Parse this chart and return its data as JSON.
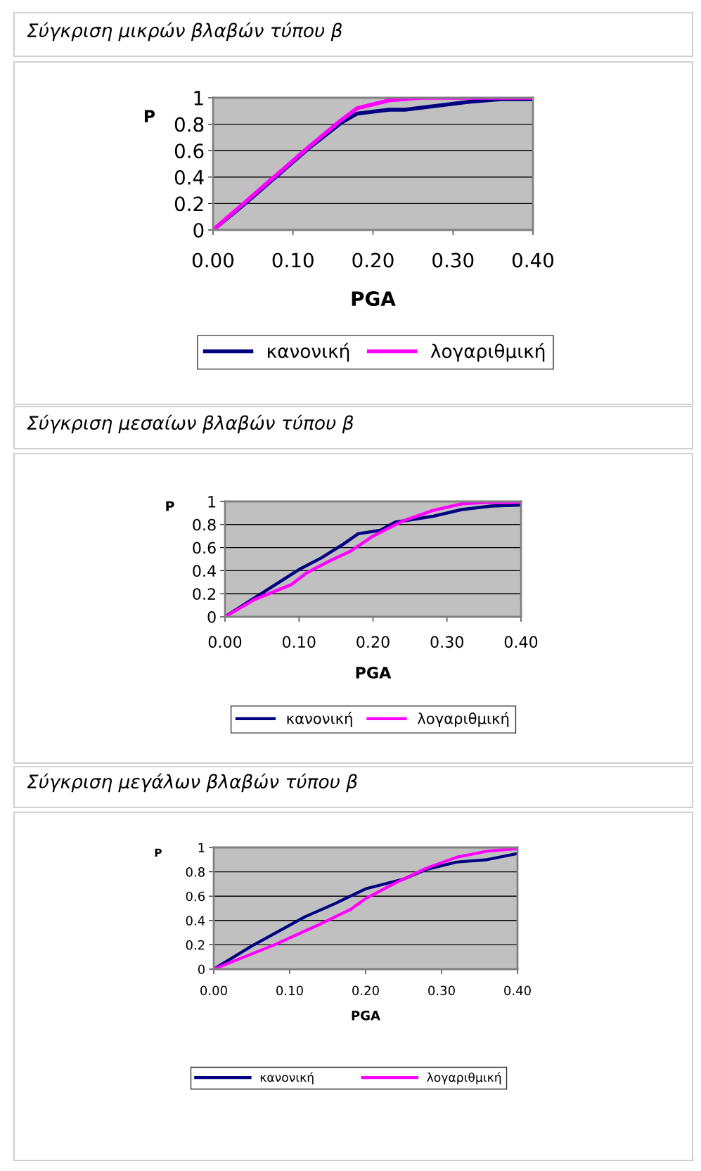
{
  "chart_data": [
    {
      "type": "line",
      "title": "Σύγκριση μικρών βλαβών τύπου β",
      "xlabel": "PGA",
      "ylabel": "P",
      "xlim": [
        0,
        0.4
      ],
      "ylim": [
        0,
        1
      ],
      "xticks": [
        {
          "value": 0,
          "label": "0.00"
        },
        {
          "value": 0.1,
          "label": "0.10"
        },
        {
          "value": 0.2,
          "label": "0.20"
        },
        {
          "value": 0.3,
          "label": "0.30"
        },
        {
          "value": 0.4,
          "label": "0.40"
        }
      ],
      "yticks": [
        0,
        0.2,
        0.4,
        0.6,
        0.8,
        1
      ],
      "grid": "y",
      "legend": "bottom",
      "marker": "none",
      "line_style": "solid",
      "series": [
        {
          "name": "κανονική",
          "color": "#000080",
          "x": [
            0,
            0.04,
            0.08,
            0.12,
            0.16,
            0.18,
            0.22,
            0.24,
            0.32,
            0.36,
            0.4
          ],
          "values": [
            0,
            0.2,
            0.41,
            0.62,
            0.81,
            0.88,
            0.91,
            0.91,
            0.97,
            0.99,
            0.99
          ]
        },
        {
          "name": "λογαριθμική",
          "color": "#ff00ff",
          "x": [
            0,
            0.04,
            0.08,
            0.12,
            0.16,
            0.18,
            0.22,
            0.26,
            0.4
          ],
          "values": [
            0,
            0.21,
            0.42,
            0.63,
            0.83,
            0.92,
            0.98,
            1.0,
            1.0
          ]
        }
      ]
    },
    {
      "type": "line",
      "title": "Σύγκριση μεσαίων βλαβών τύπου β",
      "xlabel": "PGA",
      "ylabel": "P",
      "xlim": [
        0,
        0.4
      ],
      "ylim": [
        0,
        1
      ],
      "xticks": [
        {
          "value": 0,
          "label": "0.00"
        },
        {
          "value": 0.1,
          "label": "0.10"
        },
        {
          "value": 0.2,
          "label": "0.20"
        },
        {
          "value": 0.3,
          "label": "0.30"
        },
        {
          "value": 0.4,
          "label": "0.40"
        }
      ],
      "yticks": [
        0,
        0.2,
        0.4,
        0.6,
        0.8,
        1
      ],
      "grid": "y",
      "legend": "bottom",
      "marker": "none",
      "line_style": "solid",
      "series": [
        {
          "name": "κανονική",
          "color": "#000080",
          "x": [
            0,
            0.1,
            0.13,
            0.16,
            0.18,
            0.21,
            0.23,
            0.28,
            0.32,
            0.36,
            0.4
          ],
          "values": [
            0,
            0.41,
            0.51,
            0.63,
            0.72,
            0.75,
            0.82,
            0.87,
            0.93,
            0.96,
            0.97
          ]
        },
        {
          "name": "λογαριθμική",
          "color": "#ff00ff",
          "x": [
            0,
            0.04,
            0.09,
            0.11,
            0.14,
            0.17,
            0.2,
            0.24,
            0.28,
            0.32,
            0.35,
            0.4
          ],
          "values": [
            0,
            0.15,
            0.28,
            0.38,
            0.48,
            0.57,
            0.7,
            0.83,
            0.92,
            0.98,
            0.99,
            0.99
          ]
        }
      ]
    },
    {
      "type": "line",
      "title": "Σύγκριση μεγάλων βλαβών τύπου β",
      "xlabel": "PGA",
      "ylabel": "P",
      "xlim": [
        0,
        0.4
      ],
      "ylim": [
        0,
        1
      ],
      "xticks": [
        {
          "value": 0,
          "label": "0.00"
        },
        {
          "value": 0.1,
          "label": "0.10"
        },
        {
          "value": 0.2,
          "label": "0.20"
        },
        {
          "value": 0.3,
          "label": "0.30"
        },
        {
          "value": 0.4,
          "label": "0.40"
        }
      ],
      "yticks": [
        0,
        0.2,
        0.4,
        0.6,
        0.8,
        1
      ],
      "grid": "y",
      "legend": "bottom",
      "marker": "none",
      "line_style": "solid",
      "series": [
        {
          "name": "κανονική",
          "color": "#000080",
          "x": [
            0,
            0.05,
            0.12,
            0.16,
            0.18,
            0.2,
            0.25,
            0.28,
            0.32,
            0.36,
            0.4
          ],
          "values": [
            0,
            0.19,
            0.43,
            0.54,
            0.6,
            0.66,
            0.74,
            0.82,
            0.88,
            0.9,
            0.95
          ]
        },
        {
          "name": "λογαριθμική",
          "color": "#ff00ff",
          "x": [
            0,
            0.08,
            0.14,
            0.18,
            0.2,
            0.24,
            0.28,
            0.32,
            0.36,
            0.4
          ],
          "values": [
            0,
            0.2,
            0.37,
            0.49,
            0.58,
            0.71,
            0.83,
            0.92,
            0.97,
            0.99
          ]
        }
      ]
    }
  ]
}
